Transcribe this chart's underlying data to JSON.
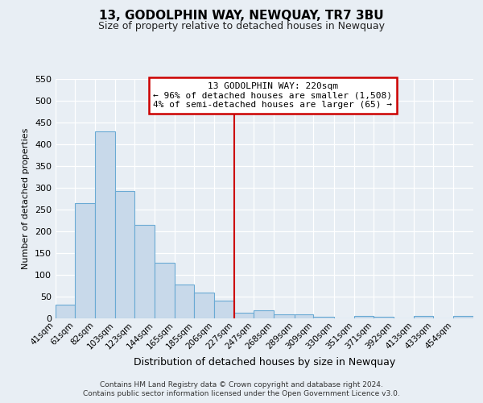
{
  "title": "13, GODOLPHIN WAY, NEWQUAY, TR7 3BU",
  "subtitle": "Size of property relative to detached houses in Newquay",
  "xlabel": "Distribution of detached houses by size in Newquay",
  "ylabel": "Number of detached properties",
  "bar_labels": [
    "41sqm",
    "61sqm",
    "82sqm",
    "103sqm",
    "123sqm",
    "144sqm",
    "165sqm",
    "185sqm",
    "206sqm",
    "227sqm",
    "247sqm",
    "268sqm",
    "289sqm",
    "309sqm",
    "330sqm",
    "351sqm",
    "371sqm",
    "392sqm",
    "413sqm",
    "433sqm",
    "454sqm"
  ],
  "bar_values": [
    32,
    265,
    428,
    292,
    215,
    128,
    77,
    60,
    41,
    13,
    18,
    9,
    10,
    3,
    0,
    5,
    4,
    0,
    5,
    0,
    5
  ],
  "bar_edges": [
    41,
    61,
    82,
    103,
    123,
    144,
    165,
    185,
    206,
    227,
    247,
    268,
    289,
    309,
    330,
    351,
    371,
    392,
    413,
    433,
    454
  ],
  "bar_widths": [
    20,
    21,
    21,
    20,
    21,
    21,
    20,
    21,
    21,
    20,
    21,
    21,
    20,
    21,
    21,
    20,
    21,
    21,
    20,
    21,
    21
  ],
  "bar_color": "#c8d9ea",
  "bar_edge_color": "#6aaad4",
  "vline_x": 227,
  "vline_color": "#cc0000",
  "annotation_title": "13 GODOLPHIN WAY: 220sqm",
  "annotation_line1": "← 96% of detached houses are smaller (1,508)",
  "annotation_line2": "4% of semi-detached houses are larger (65) →",
  "annotation_box_color": "#cc0000",
  "ylim": [
    0,
    550
  ],
  "yticks": [
    0,
    50,
    100,
    150,
    200,
    250,
    300,
    350,
    400,
    450,
    500,
    550
  ],
  "bg_color": "#e8eef4",
  "plot_bg_color": "#e8eef4",
  "grid_color": "#ffffff",
  "footer_line1": "Contains HM Land Registry data © Crown copyright and database right 2024.",
  "footer_line2": "Contains public sector information licensed under the Open Government Licence v3.0."
}
